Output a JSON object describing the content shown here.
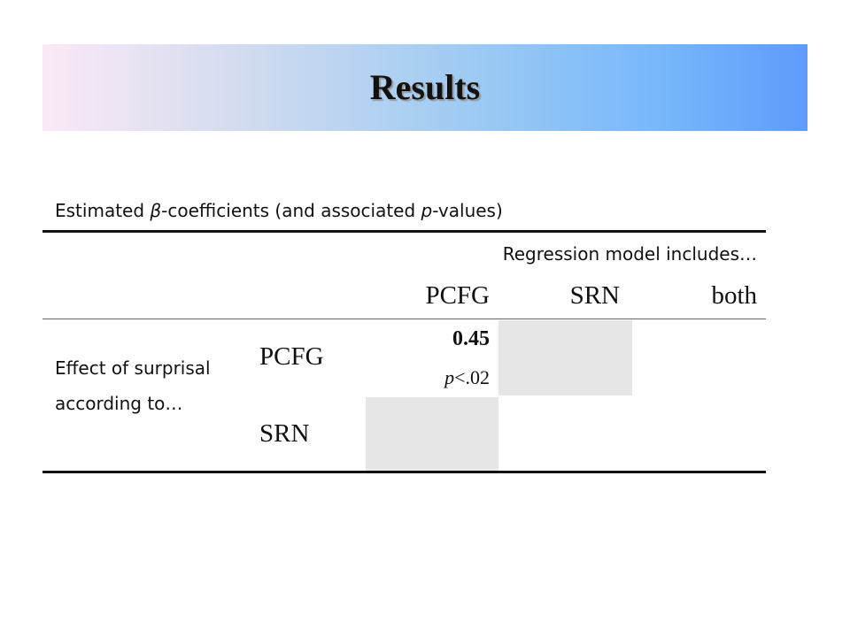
{
  "header": {
    "title": "Results"
  },
  "caption": [
    "Estimated ",
    "β",
    "-coefficients (and associated ",
    "p",
    "-values)"
  ],
  "table": {
    "group_header": "Regression model includes…",
    "columns": [
      "PCFG",
      "SRN",
      "both"
    ],
    "row_group_label": "Effect of surprisal according to…",
    "rows": [
      {
        "label": "PCFG",
        "estimate": 0.45,
        "p_symbol": "p",
        "p_value": "<.02"
      },
      {
        "label": "SRN"
      }
    ]
  }
}
